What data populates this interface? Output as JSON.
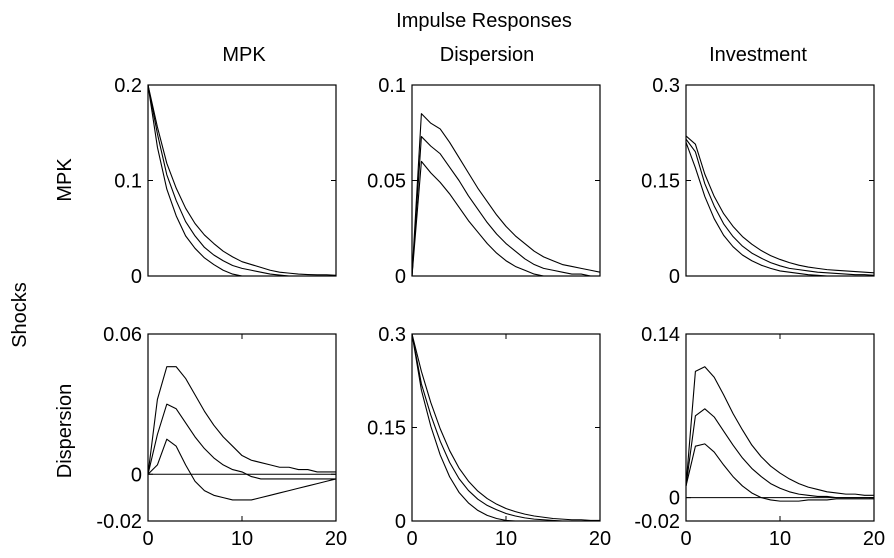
{
  "figure": {
    "suptitle": "Impulse Responses",
    "row_axis_label": "Shocks",
    "column_titles": [
      "MPK",
      "Dispersion",
      "Investment"
    ],
    "row_labels": [
      "MPK",
      "Dispersion"
    ]
  },
  "chart_data": [
    {
      "type": "line",
      "title": "MPK",
      "ylabel": "MPK",
      "xlim": [
        0,
        20
      ],
      "ylim": [
        0,
        0.2
      ],
      "yticks": [
        0,
        0.1,
        0.2
      ],
      "ytick_labels": [
        "0",
        "0.1",
        "0.2"
      ],
      "xticks": [],
      "xtick_labels": [],
      "zero_line": false,
      "x": [
        0,
        1,
        2,
        3,
        4,
        5,
        6,
        7,
        8,
        9,
        10,
        11,
        12,
        13,
        14,
        15,
        16,
        17,
        18,
        19,
        20
      ],
      "series": [
        {
          "values": [
            0.2,
            0.156,
            0.118,
            0.092,
            0.071,
            0.055,
            0.043,
            0.034,
            0.026,
            0.02,
            0.015,
            0.012,
            0.009,
            0.006,
            0.004,
            0.003,
            0.002,
            0.0015,
            0.0012,
            0.0012,
            0.0008
          ]
        },
        {
          "values": [
            0.2,
            0.149,
            0.106,
            0.079,
            0.057,
            0.042,
            0.03,
            0.022,
            0.016,
            0.011,
            0.008,
            0.006,
            0.004,
            0.002,
            0.001,
            0,
            0,
            0,
            0,
            0,
            0
          ]
        },
        {
          "values": [
            0.2,
            0.135,
            0.091,
            0.063,
            0.042,
            0.029,
            0.019,
            0.012,
            0.006,
            0.002,
            0,
            0,
            0,
            0,
            0,
            0,
            0,
            0,
            0,
            0,
            0
          ]
        }
      ]
    },
    {
      "type": "line",
      "title": "Dispersion",
      "xlim": [
        0,
        20
      ],
      "ylim": [
        0,
        0.1
      ],
      "yticks": [
        0,
        0.05,
        0.1
      ],
      "ytick_labels": [
        "0",
        "0.05",
        "0.1"
      ],
      "xticks": [],
      "xtick_labels": [],
      "zero_line": false,
      "x": [
        0,
        1,
        2,
        3,
        4,
        5,
        6,
        7,
        8,
        9,
        10,
        11,
        12,
        13,
        14,
        15,
        16,
        17,
        18,
        19,
        20
      ],
      "series": [
        {
          "values": [
            0,
            0.085,
            0.08,
            0.077,
            0.07,
            0.062,
            0.054,
            0.046,
            0.039,
            0.032,
            0.026,
            0.021,
            0.017,
            0.013,
            0.01,
            0.008,
            0.006,
            0.005,
            0.004,
            0.003,
            0.002
          ]
        },
        {
          "values": [
            0,
            0.073,
            0.068,
            0.064,
            0.057,
            0.05,
            0.042,
            0.035,
            0.028,
            0.022,
            0.017,
            0.013,
            0.009,
            0.006,
            0.004,
            0.003,
            0.002,
            0.001,
            0.001,
            0,
            0
          ]
        },
        {
          "values": [
            0,
            0.06,
            0.054,
            0.049,
            0.043,
            0.036,
            0.029,
            0.023,
            0.017,
            0.012,
            0.008,
            0.005,
            0.003,
            0.001,
            0,
            0,
            0,
            0,
            0,
            0,
            0
          ]
        }
      ]
    },
    {
      "type": "line",
      "title": "Investment",
      "xlim": [
        0,
        20
      ],
      "ylim": [
        0,
        0.3
      ],
      "yticks": [
        0,
        0.15,
        0.3
      ],
      "ytick_labels": [
        "0",
        "0.15",
        "0.3"
      ],
      "xticks": [],
      "xtick_labels": [],
      "zero_line": false,
      "x": [
        0,
        1,
        2,
        3,
        4,
        5,
        6,
        7,
        8,
        9,
        10,
        11,
        12,
        13,
        14,
        15,
        16,
        17,
        18,
        19,
        20
      ],
      "series": [
        {
          "values": [
            0.22,
            0.207,
            0.16,
            0.125,
            0.098,
            0.078,
            0.062,
            0.05,
            0.04,
            0.032,
            0.026,
            0.021,
            0.017,
            0.014,
            0.012,
            0.01,
            0.009,
            0.008,
            0.007,
            0.006,
            0.005
          ]
        },
        {
          "values": [
            0.215,
            0.195,
            0.145,
            0.11,
            0.082,
            0.062,
            0.047,
            0.036,
            0.028,
            0.021,
            0.016,
            0.012,
            0.01,
            0.008,
            0.006,
            0.005,
            0.004,
            0.003,
            0.002,
            0.002,
            0.001
          ]
        },
        {
          "values": [
            0.21,
            0.17,
            0.125,
            0.09,
            0.064,
            0.046,
            0.033,
            0.024,
            0.017,
            0.012,
            0.008,
            0.006,
            0.004,
            0.002,
            0.001,
            0,
            0,
            0,
            0,
            0,
            0
          ]
        }
      ]
    },
    {
      "type": "line",
      "ylabel": "Dispersion",
      "xlim": [
        0,
        20
      ],
      "ylim": [
        -0.02,
        0.06
      ],
      "yticks": [
        -0.02,
        0,
        0.06
      ],
      "ytick_labels": [
        "-0.02",
        "0",
        "0.06"
      ],
      "xticks": [
        0,
        10,
        20
      ],
      "xtick_labels": [
        "0",
        "10",
        "20"
      ],
      "zero_line": true,
      "x": [
        0,
        1,
        2,
        3,
        4,
        5,
        6,
        7,
        8,
        9,
        10,
        11,
        12,
        13,
        14,
        15,
        16,
        17,
        18,
        19,
        20
      ],
      "series": [
        {
          "values": [
            0,
            0.032,
            0.046,
            0.046,
            0.041,
            0.034,
            0.027,
            0.021,
            0.016,
            0.012,
            0.008,
            0.006,
            0.005,
            0.004,
            0.003,
            0.003,
            0.002,
            0.002,
            0.001,
            0.001,
            0.001
          ]
        },
        {
          "values": [
            0,
            0.017,
            0.03,
            0.028,
            0.022,
            0.016,
            0.011,
            0.007,
            0.004,
            0.002,
            0.001,
            -0.001,
            -0.002,
            -0.002,
            -0.002,
            -0.002,
            -0.002,
            -0.002,
            -0.002,
            -0.002,
            -0.002
          ]
        },
        {
          "values": [
            0,
            0.004,
            0.015,
            0.012,
            0.004,
            -0.003,
            -0.007,
            -0.009,
            -0.01,
            -0.011,
            -0.011,
            -0.011,
            -0.01,
            -0.009,
            -0.008,
            -0.007,
            -0.006,
            -0.005,
            -0.004,
            -0.003,
            -0.002
          ]
        }
      ]
    },
    {
      "type": "line",
      "xlim": [
        0,
        20
      ],
      "ylim": [
        0,
        0.3
      ],
      "yticks": [
        0,
        0.15,
        0.3
      ],
      "ytick_labels": [
        "0",
        "0.15",
        "0.3"
      ],
      "xticks": [
        0,
        10,
        20
      ],
      "xtick_labels": [
        "0",
        "10",
        "20"
      ],
      "zero_line": false,
      "x": [
        0,
        1,
        2,
        3,
        4,
        5,
        6,
        7,
        8,
        9,
        10,
        11,
        12,
        13,
        14,
        15,
        16,
        17,
        18,
        19,
        20
      ],
      "series": [
        {
          "values": [
            0.3,
            0.24,
            0.19,
            0.148,
            0.113,
            0.085,
            0.064,
            0.048,
            0.036,
            0.027,
            0.02,
            0.015,
            0.011,
            0.008,
            0.006,
            0.004,
            0.003,
            0.002,
            0.002,
            0.001,
            0.001
          ]
        },
        {
          "values": [
            0.3,
            0.22,
            0.17,
            0.128,
            0.094,
            0.068,
            0.049,
            0.035,
            0.025,
            0.018,
            0.012,
            0.008,
            0.005,
            0.003,
            0.002,
            0.001,
            0,
            0,
            0,
            0,
            0
          ]
        },
        {
          "values": [
            0.3,
            0.21,
            0.152,
            0.106,
            0.071,
            0.046,
            0.029,
            0.017,
            0.009,
            0.004,
            0.001,
            0,
            0,
            0,
            0,
            0,
            0,
            0,
            0,
            0,
            0
          ]
        }
      ]
    },
    {
      "type": "line",
      "xlim": [
        0,
        20
      ],
      "ylim": [
        -0.02,
        0.14
      ],
      "yticks": [
        -0.02,
        0,
        0.14
      ],
      "ytick_labels": [
        "-0.02",
        "0",
        "0.14"
      ],
      "xticks": [
        0,
        10,
        20
      ],
      "xtick_labels": [
        "0",
        "10",
        "20"
      ],
      "zero_line": true,
      "x": [
        0,
        1,
        2,
        3,
        4,
        5,
        6,
        7,
        8,
        9,
        10,
        11,
        12,
        13,
        14,
        15,
        16,
        17,
        18,
        19,
        20
      ],
      "series": [
        {
          "values": [
            0.01,
            0.108,
            0.112,
            0.103,
            0.088,
            0.072,
            0.058,
            0.045,
            0.035,
            0.027,
            0.021,
            0.016,
            0.012,
            0.009,
            0.007,
            0.005,
            0.004,
            0.003,
            0.003,
            0.002,
            0.002
          ]
        },
        {
          "values": [
            0.01,
            0.07,
            0.076,
            0.069,
            0.057,
            0.045,
            0.034,
            0.025,
            0.018,
            0.012,
            0.008,
            0.005,
            0.003,
            0.002,
            0.001,
            0.001,
            0,
            0,
            0,
            0,
            0
          ]
        },
        {
          "values": [
            0.01,
            0.044,
            0.046,
            0.039,
            0.028,
            0.018,
            0.01,
            0.004,
            0,
            -0.002,
            -0.003,
            -0.003,
            -0.003,
            -0.002,
            -0.002,
            -0.002,
            -0.001,
            -0.001,
            -0.001,
            -0.001,
            -0.001
          ]
        }
      ]
    }
  ]
}
